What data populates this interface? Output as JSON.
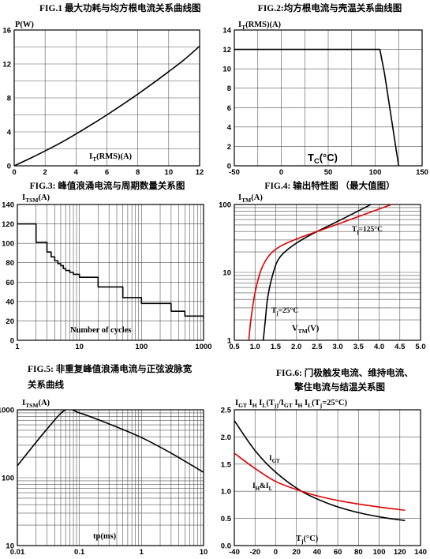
{
  "chart_data": [
    {
      "id": "fig1",
      "type": "line",
      "title": "FIG.1  最大功耗与均方根电流关系曲线图",
      "ylabel": "P(W)",
      "xlabel": "I_T(RMS)(A)",
      "xlim": [
        0,
        12
      ],
      "ylim": [
        0,
        16
      ],
      "xticks": [
        "0",
        "2",
        "4",
        "6",
        "8",
        "10",
        "12"
      ],
      "yticks": [
        "0",
        "4",
        "8",
        "12",
        "16"
      ],
      "grid": true,
      "series": [
        {
          "color": "#000000",
          "x": [
            0,
            1,
            2,
            3,
            4,
            5,
            6,
            7,
            8,
            9,
            10,
            11,
            12
          ],
          "y": [
            0,
            0.85,
            1.75,
            2.7,
            3.75,
            4.85,
            6.0,
            7.2,
            8.45,
            9.75,
            11.1,
            12.5,
            14.1
          ]
        }
      ]
    },
    {
      "id": "fig2",
      "type": "line",
      "title": "FIG.2:均方根电流与壳温关系曲线图",
      "ylabel": "I_T(RMS)(A)",
      "xlabel": "T_C(°C)",
      "xlim": [
        -50,
        150
      ],
      "ylim": [
        0,
        14
      ],
      "xticks": [
        "-50",
        "0",
        "50",
        "100",
        "150"
      ],
      "yticks": [
        "0",
        "2",
        "4",
        "6",
        "8",
        "10",
        "12",
        "14"
      ],
      "grid": true,
      "series": [
        {
          "color": "#000000",
          "x": [
            -50,
            105,
            110,
            125
          ],
          "y": [
            12,
            12,
            9.5,
            0
          ]
        }
      ]
    },
    {
      "id": "fig3",
      "type": "line",
      "title": "FIG.3:  峰值浪涌电流与周期数量关系图",
      "ylabel": "I_TSM(A)",
      "xlabel": "Number of cycles",
      "xscale": "log",
      "xlim": [
        1,
        1000
      ],
      "ylim": [
        0,
        140
      ],
      "xticks": [
        "1",
        "10",
        "100",
        "1000"
      ],
      "yticks": [
        "0",
        "20",
        "40",
        "60",
        "80",
        "100",
        "120",
        "140"
      ],
      "grid": true,
      "series": [
        {
          "color": "#000000",
          "step": true,
          "x": [
            1,
            2,
            3,
            3.5,
            4,
            4.5,
            5,
            5.5,
            6,
            7,
            8,
            10,
            20,
            50,
            100,
            300,
            500,
            1000
          ],
          "y": [
            120,
            101,
            91,
            86,
            82,
            79,
            77,
            74,
            72,
            70,
            68,
            65,
            55,
            44,
            38,
            30,
            25,
            22
          ]
        }
      ]
    },
    {
      "id": "fig4",
      "type": "line",
      "title": "FIG.4:  输出特性图 （最大值图）",
      "ylabel": "I_TM(A)",
      "xlabel": "V_TM(V)",
      "yscale": "log",
      "xlim": [
        0.5,
        5.0
      ],
      "ylim": [
        1,
        100
      ],
      "xticks": [
        "0.5",
        "1.0",
        "1.5",
        "2.0",
        "2.5",
        "3.0",
        "3.5",
        "4.0",
        "4.5",
        "5.0"
      ],
      "yticks": [
        "1",
        "10",
        "100"
      ],
      "grid": true,
      "series": [
        {
          "label": "T_j=25°C",
          "color": "#000000",
          "x": [
            1.2,
            1.25,
            1.3,
            1.4,
            1.55,
            1.8,
            2.2,
            2.7,
            3.2,
            3.8
          ],
          "y": [
            1,
            2,
            4,
            8,
            15,
            22,
            32,
            46,
            65,
            100
          ]
        },
        {
          "label": "T_j=125°C",
          "color": "#e00000",
          "x": [
            0.85,
            0.9,
            1.0,
            1.15,
            1.35,
            1.6,
            2.0,
            2.6,
            3.3,
            4.3
          ],
          "y": [
            1,
            2,
            5,
            11,
            18,
            24,
            31,
            42,
            60,
            100
          ]
        }
      ]
    },
    {
      "id": "fig5",
      "type": "line",
      "title": "FIG.5:  非重复峰值浪涌电流与正弦波脉宽",
      "title2": "关系曲线",
      "ylabel": "I_TSM(A)",
      "xlabel": "tp(ms)",
      "xscale": "log",
      "yscale": "log",
      "xlim": [
        0.01,
        10
      ],
      "ylim": [
        10,
        1000
      ],
      "xticks": [
        "0.01",
        "0.1",
        "1",
        "10"
      ],
      "yticks": [
        "10",
        "100",
        "1000"
      ],
      "grid": true,
      "series": [
        {
          "color": "#000000",
          "x": [
            0.01,
            0.03,
            0.06,
            0.1,
            0.3,
            1,
            3,
            10
          ],
          "y": [
            150,
            520,
            1000,
            900,
            620,
            390,
            230,
            120
          ]
        }
      ]
    },
    {
      "id": "fig6",
      "type": "line",
      "title": "FIG.6:  门极触发电流、维持电流、",
      "title2": "擎住电流与结温关系图",
      "ylabel": "I_GT I_H I_L(T_j)/I_GT I_H I_L(T_j=25°C)",
      "xlabel": "T_j(°C)",
      "xlim": [
        -40,
        140
      ],
      "ylim": [
        0,
        2.5
      ],
      "xticks": [
        "-40",
        "-20",
        "0",
        "20",
        "40",
        "60",
        "80",
        "100",
        "120",
        "140"
      ],
      "yticks": [
        "0.0",
        "0.5",
        "1.0",
        "1.5",
        "2.0",
        "2.5"
      ],
      "grid": true,
      "series": [
        {
          "label": "I_GT",
          "color": "#000000",
          "x": [
            -40,
            -20,
            0,
            25,
            50,
            75,
            100,
            125
          ],
          "y": [
            2.3,
            1.75,
            1.35,
            1.0,
            0.78,
            0.63,
            0.53,
            0.46
          ]
        },
        {
          "label": "I_H&I_L",
          "color": "#e00000",
          "x": [
            -40,
            -20,
            0,
            25,
            50,
            75,
            100,
            125
          ],
          "y": [
            1.7,
            1.42,
            1.18,
            1.0,
            0.87,
            0.78,
            0.71,
            0.65
          ]
        }
      ]
    }
  ]
}
